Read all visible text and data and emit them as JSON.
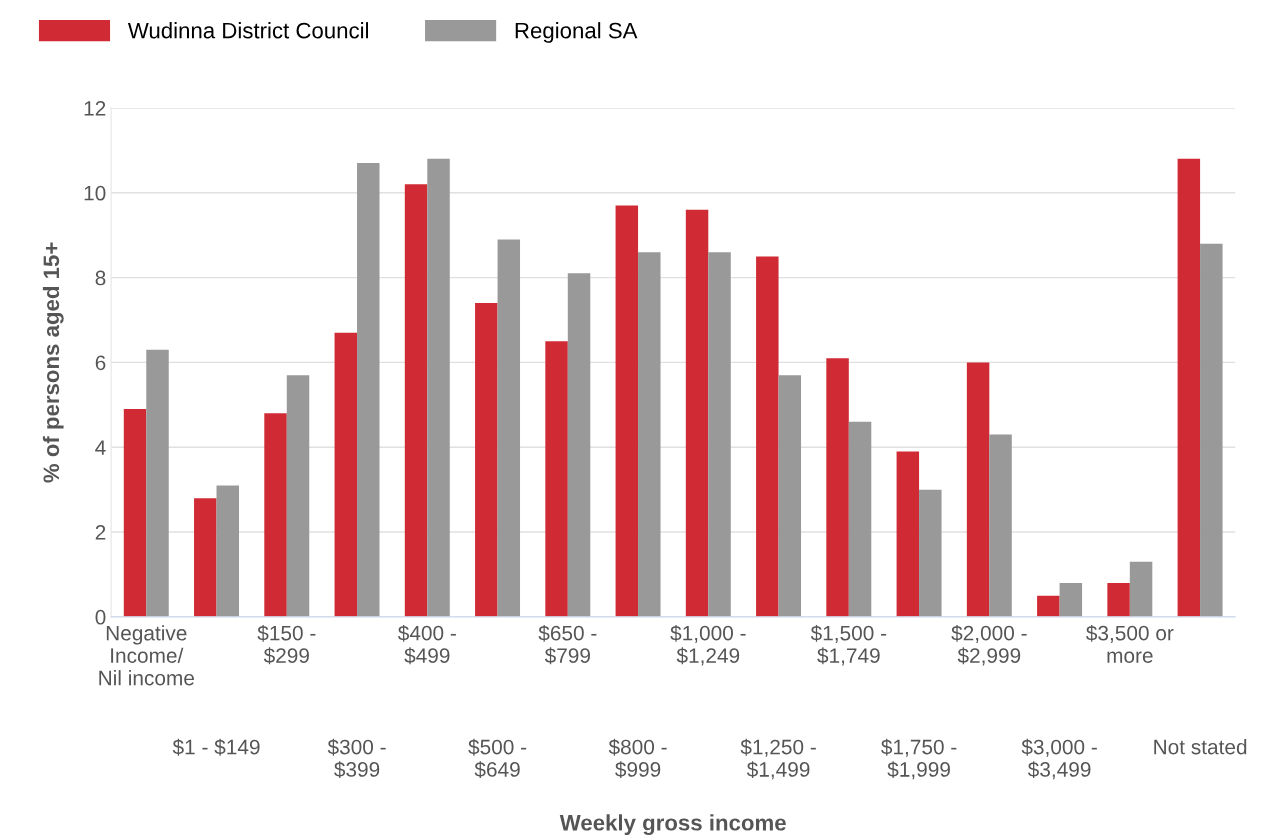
{
  "chart_data": {
    "type": "bar",
    "xlabel": "Weekly gross income",
    "ylabel": "% of persons aged 15+",
    "categories": [
      "Negative Income/ Nil income",
      "$1 - $149",
      "$150 - $299",
      "$300 - $399",
      "$400 - $499",
      "$500 - $649",
      "$650 - $799",
      "$800 - $999",
      "$1,000 - $1,249",
      "$1,250 - $1,499",
      "$1,500 - $1,749",
      "$1,750 - $1,999",
      "$2,000 - $2,999",
      "$3,000 - $3,499",
      "$3,500 or more",
      "Not stated"
    ],
    "series": [
      {
        "name": "Wudinna District Council",
        "color": "#d02b34",
        "values": [
          4.9,
          2.8,
          4.8,
          6.7,
          10.2,
          7.4,
          6.5,
          9.7,
          9.6,
          8.5,
          6.1,
          3.9,
          6.0,
          0.5,
          0.8,
          10.8
        ]
      },
      {
        "name": "Regional SA",
        "color": "#999999",
        "values": [
          6.3,
          3.1,
          5.7,
          10.7,
          10.8,
          8.9,
          8.1,
          8.6,
          8.6,
          5.7,
          4.6,
          3.0,
          4.3,
          0.8,
          1.3,
          8.8
        ]
      }
    ],
    "ylim": [
      0,
      12
    ],
    "yticks": [
      0,
      2,
      4,
      6,
      8,
      10,
      12
    ],
    "grid": "y",
    "legend": "top left"
  }
}
